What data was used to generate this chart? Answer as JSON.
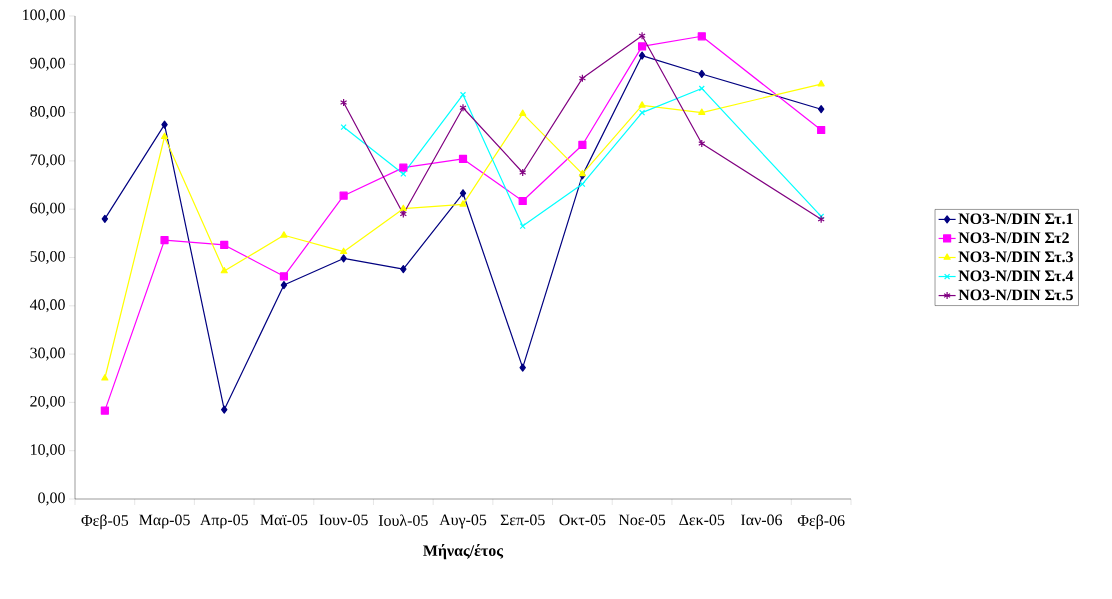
{
  "chart_data": {
    "type": "line",
    "xlabel": "**Μήνας/έτος**",
    "categories": [
      "Φεβ-05",
      "Μαρ-05",
      "Απρ-05",
      "Μαϊ-05",
      "Ιουν-05",
      "Ιουλ-05",
      "Αυγ-05",
      "Σεπ-05",
      "Οκτ-05",
      "Νοε-05",
      "Δεκ-05",
      "Ιαν-06",
      "Φεβ-06"
    ],
    "series": [
      {
        "name": "**NO3-N/DIN Στ.1**",
        "color": "#000080",
        "marker": "diamond",
        "values": [
          58.0,
          77.5,
          18.5,
          44.3,
          49.8,
          47.6,
          63.3,
          27.2,
          67.0,
          91.8,
          88.0,
          null,
          80.7
        ]
      },
      {
        "name": "**NO3-N/DIN Στ2**",
        "color": "#ff00ff",
        "marker": "square",
        "values": [
          18.3,
          53.6,
          52.6,
          46.1,
          62.8,
          68.6,
          70.4,
          61.7,
          73.3,
          93.7,
          95.8,
          null,
          76.4
        ]
      },
      {
        "name": "**NO3-N/DIN Στ.3**",
        "color": "#ffff00",
        "marker": "triangle",
        "values": [
          25.0,
          75.0,
          47.2,
          54.6,
          51.2,
          60.1,
          61.0,
          79.8,
          67.3,
          81.5,
          80.0,
          null,
          85.9
        ]
      },
      {
        "name": "**NO3-N/DIN Στ.4**",
        "color": "#00ffff",
        "marker": "cross",
        "values": [
          null,
          null,
          null,
          null,
          77.0,
          67.3,
          83.7,
          56.5,
          65.2,
          80.0,
          85.0,
          null,
          58.5
        ]
      },
      {
        "name": "**NO3-N/DIN Στ.5**",
        "color": "#800080",
        "marker": "cross",
        "values": [
          null,
          null,
          null,
          null,
          82.1,
          59.0,
          81.0,
          67.6,
          87.1,
          95.9,
          73.6,
          null,
          57.9
        ]
      }
    ],
    "ylim": [
      0,
      100
    ],
    "yticks": [
      {
        "value": 0,
        "label": "0,00"
      },
      {
        "value": 10,
        "label": "10,00"
      },
      {
        "value": 20,
        "label": "20,00"
      },
      {
        "value": 30,
        "label": "30,00"
      },
      {
        "value": 40,
        "label": "40,00"
      },
      {
        "value": 50,
        "label": "50,00"
      },
      {
        "value": 60,
        "label": "60,00"
      },
      {
        "value": 70,
        "label": "70,00"
      },
      {
        "value": 80,
        "label": "80,00"
      },
      {
        "value": 90,
        "label": "90,00"
      },
      {
        "value": 100,
        "label": "100,00"
      }
    ],
    "grid": false,
    "legend": "right",
    "line_style": "solid"
  }
}
